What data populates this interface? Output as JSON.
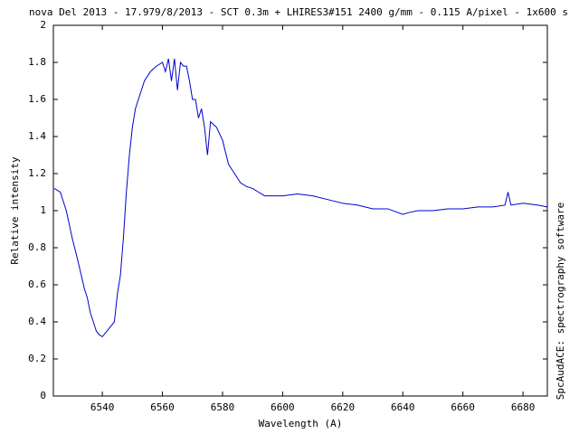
{
  "chart_data": {
    "type": "line",
    "title": "nova Del 2013 - 17.979/8/2013 - SCT 0.3m + LHIRES3#151 2400 g/mm - 0.115 A/pixel - 1x600 s",
    "xlabel": "Wavelength (A)",
    "ylabel": "Relative intensity",
    "annotation": "SpcAudACE: spectrography software",
    "color": "#0000cc",
    "x": [
      6524,
      6526,
      6528,
      6530,
      6532,
      6534,
      6535,
      6536,
      6537,
      6538,
      6539,
      6540,
      6541,
      6542,
      6543,
      6544,
      6545,
      6546,
      6547,
      6548,
      6549,
      6550,
      6551,
      6552,
      6553,
      6554,
      6556,
      6558,
      6560,
      6561,
      6562,
      6563,
      6564,
      6565,
      6566,
      6567,
      6568,
      6569,
      6570,
      6571,
      6572,
      6573,
      6574,
      6575,
      6576,
      6578,
      6580,
      6582,
      6584,
      6586,
      6588,
      6590,
      6592,
      6594,
      6598,
      6600,
      6605,
      6610,
      6615,
      6620,
      6625,
      6630,
      6635,
      6640,
      6642,
      6645,
      6650,
      6655,
      6660,
      6665,
      6670,
      6674,
      6675,
      6676,
      6680,
      6685,
      6688
    ],
    "values": [
      1.12,
      1.1,
      1.0,
      0.85,
      0.72,
      0.58,
      0.53,
      0.45,
      0.4,
      0.35,
      0.33,
      0.32,
      0.34,
      0.36,
      0.38,
      0.4,
      0.55,
      0.65,
      0.85,
      1.1,
      1.3,
      1.45,
      1.55,
      1.6,
      1.65,
      1.7,
      1.75,
      1.78,
      1.8,
      1.75,
      1.82,
      1.7,
      1.82,
      1.65,
      1.8,
      1.78,
      1.78,
      1.7,
      1.6,
      1.6,
      1.5,
      1.55,
      1.45,
      1.3,
      1.48,
      1.45,
      1.38,
      1.25,
      1.2,
      1.15,
      1.13,
      1.12,
      1.1,
      1.08,
      1.08,
      1.08,
      1.09,
      1.08,
      1.06,
      1.04,
      1.03,
      1.01,
      1.01,
      0.98,
      0.99,
      1.0,
      1.0,
      1.01,
      1.01,
      1.02,
      1.02,
      1.03,
      1.1,
      1.03,
      1.04,
      1.03,
      1.02
    ],
    "xlim": [
      6523.7,
      6688.1
    ],
    "ylim": [
      0,
      2
    ],
    "xticks": [
      6540,
      6560,
      6580,
      6600,
      6620,
      6640,
      6660,
      6680
    ],
    "yticks": [
      0,
      0.2,
      0.4,
      0.6,
      0.8,
      1,
      1.2,
      1.4,
      1.6,
      1.8,
      2
    ]
  }
}
